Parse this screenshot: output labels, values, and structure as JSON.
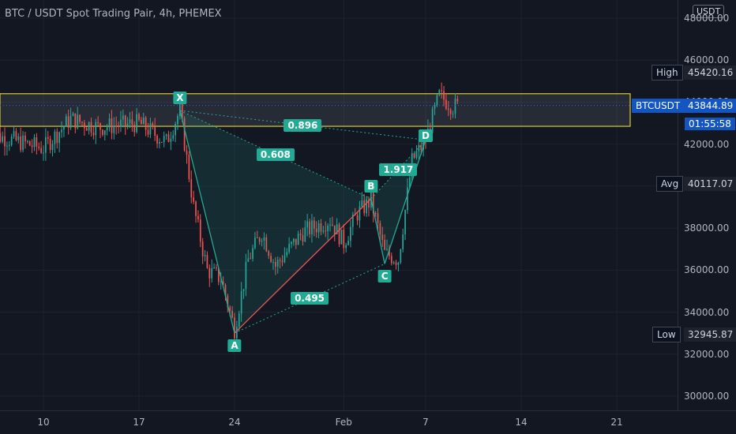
{
  "title": "BTC / USDT Spot Trading Pair, 4h, PHEMEX",
  "currency_badge": "USDT",
  "colors": {
    "background": "#131722",
    "grid": "#1e222d",
    "up_candle": "#26a69a",
    "down_candle": "#ef5350",
    "pattern": "#22ab94",
    "zone_border": "#ffeb3b",
    "leg_red": "#ef5350"
  },
  "price_labels": {
    "high": {
      "name": "High",
      "value": "45420.16"
    },
    "current": {
      "name": "BTCUSDT",
      "value": "43844.89",
      "countdown": "01:55:58"
    },
    "avg": {
      "name": "Avg",
      "value": "40117.07"
    },
    "low": {
      "name": "Low",
      "value": "32945.87"
    }
  },
  "pattern_points": [
    "X",
    "A",
    "B",
    "C",
    "D"
  ],
  "pattern_ratios": [
    "0.896",
    "0.608",
    "0.495",
    "1.917"
  ],
  "chart_data": {
    "type": "candlestick",
    "interval": "4h",
    "ylim": [
      29000,
      49000
    ],
    "yticks": [
      "30000.00",
      "32000.00",
      "34000.00",
      "36000.00",
      "38000.00",
      "40000.00",
      "42000.00",
      "44000.00",
      "46000.00",
      "48000.00"
    ],
    "x_ticks": [
      "10",
      "17",
      "24",
      "Feb",
      "7",
      "14",
      "21"
    ],
    "grid": true,
    "series_anchor_points": [
      {
        "x": "Jan 6",
        "price": 42500
      },
      {
        "x": "Jan 10",
        "price": 41800
      },
      {
        "x": "Jan 12",
        "price": 43200
      },
      {
        "x": "Jan 14",
        "price": 42800
      },
      {
        "x": "Jan 17",
        "price": 43000
      },
      {
        "x": "Jan 19",
        "price": 42100
      },
      {
        "x": "Jan 20",
        "price": 43600
      },
      {
        "x": "Jan 21",
        "price": 39000
      },
      {
        "x": "Jan 22",
        "price": 36000
      },
      {
        "x": "Jan 23",
        "price": 35600
      },
      {
        "x": "Jan 24",
        "price": 33200
      },
      {
        "x": "Jan 25",
        "price": 36500
      },
      {
        "x": "Jan 26",
        "price": 37800
      },
      {
        "x": "Jan 27",
        "price": 36200
      },
      {
        "x": "Jan 29",
        "price": 37800
      },
      {
        "x": "Jan 31",
        "price": 38400
      },
      {
        "x": "Feb 1",
        "price": 37300
      },
      {
        "x": "Feb 2",
        "price": 38700
      },
      {
        "x": "Feb 3",
        "price": 39300
      },
      {
        "x": "Feb 4",
        "price": 36800
      },
      {
        "x": "Feb 5",
        "price": 36500
      },
      {
        "x": "Feb 6",
        "price": 41200
      },
      {
        "x": "Feb 7",
        "price": 42200
      },
      {
        "x": "Feb 8",
        "price": 44300
      },
      {
        "x": "Feb 9",
        "price": 43800
      }
    ],
    "harmonic_pattern": {
      "X": {
        "x": "Jan 20",
        "price": 43600
      },
      "A": {
        "x": "Jan 24",
        "price": 33000
      },
      "B": {
        "x": "Feb 3",
        "price": 39400
      },
      "C": {
        "x": "Feb 4",
        "price": 36300
      },
      "D": {
        "x": "Feb 7",
        "price": 42200
      }
    },
    "zone": {
      "top_price": 44400,
      "bottom_price": 42850
    },
    "levels": {
      "high": 45420.16,
      "current": 43844.89,
      "avg": 40117.07,
      "low": 32945.87
    }
  }
}
